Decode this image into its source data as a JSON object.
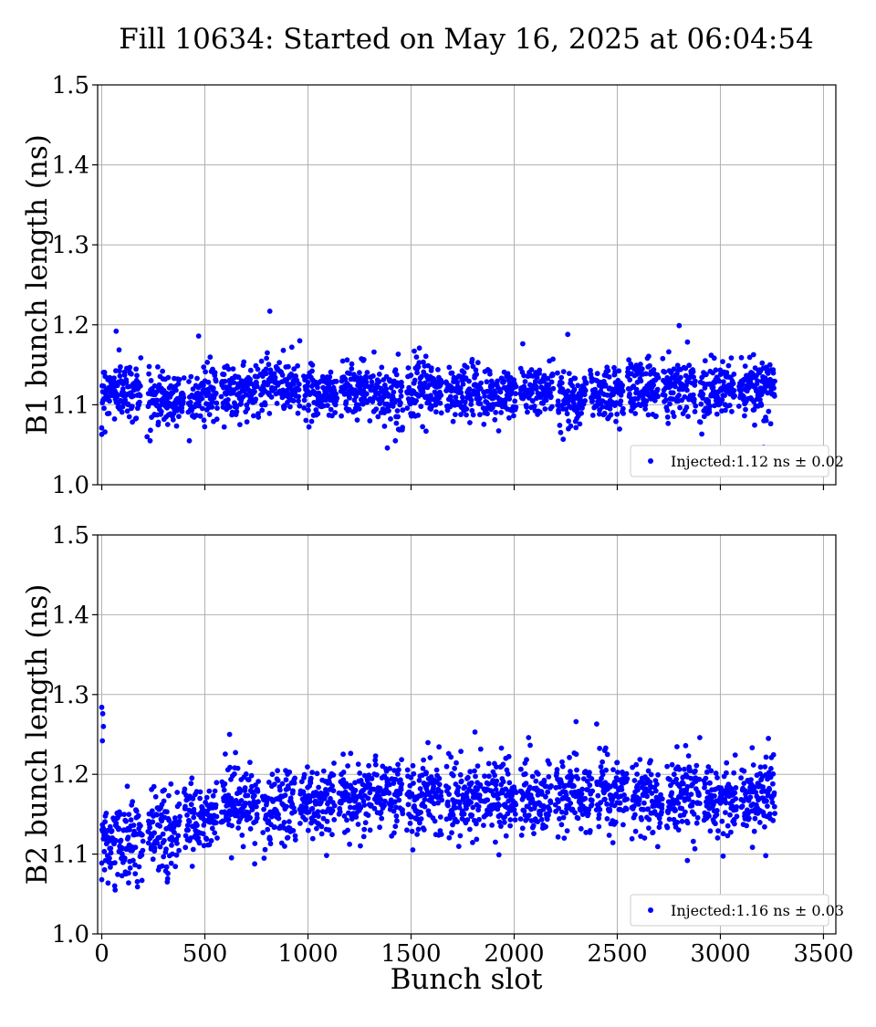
{
  "chart_data": {
    "type": "scatter",
    "title": "Fill 10634: Started on May 16, 2025 at 06:04:54",
    "xlabel": "Bunch slot",
    "xlim": [
      -20,
      3560
    ],
    "xticks": [
      0,
      500,
      1000,
      1500,
      2000,
      2500,
      3000,
      3500
    ],
    "xtick_labels": [
      "0",
      "500",
      "1000",
      "1500",
      "2000",
      "2500",
      "3000",
      "3500"
    ],
    "grid": true,
    "marker_color": "#0000ff",
    "panels": [
      {
        "ylabel": "B1 bunch length (ns)",
        "ylim": [
          1.0,
          1.5
        ],
        "yticks": [
          1.0,
          1.1,
          1.2,
          1.3,
          1.4,
          1.5
        ],
        "ytick_labels": [
          "1.0",
          "1.1",
          "1.2",
          "1.3",
          "1.4",
          "1.5"
        ],
        "show_xtick_labels": false,
        "legend": {
          "label": "Injected:1.12 ns ± 0.02",
          "placement": "lower-right"
        },
        "series": {
          "x_range": [
            0,
            3265
          ],
          "trains": [
            {
              "start": 0,
              "end": 190,
              "mean": 1.118
            },
            {
              "start": 225,
              "end": 400,
              "mean": 1.108
            },
            {
              "start": 420,
              "end": 560,
              "mean": 1.112
            },
            {
              "start": 580,
              "end": 760,
              "mean": 1.118
            },
            {
              "start": 770,
              "end": 960,
              "mean": 1.125
            },
            {
              "start": 980,
              "end": 1140,
              "mean": 1.115
            },
            {
              "start": 1160,
              "end": 1290,
              "mean": 1.122
            },
            {
              "start": 1300,
              "end": 1460,
              "mean": 1.112
            },
            {
              "start": 1480,
              "end": 1650,
              "mean": 1.118
            },
            {
              "start": 1670,
              "end": 1840,
              "mean": 1.115
            },
            {
              "start": 1850,
              "end": 2010,
              "mean": 1.112
            },
            {
              "start": 2030,
              "end": 2190,
              "mean": 1.118
            },
            {
              "start": 2210,
              "end": 2350,
              "mean": 1.11
            },
            {
              "start": 2370,
              "end": 2530,
              "mean": 1.115
            },
            {
              "start": 2550,
              "end": 2700,
              "mean": 1.122
            },
            {
              "start": 2720,
              "end": 2880,
              "mean": 1.124
            },
            {
              "start": 2900,
              "end": 3070,
              "mean": 1.118
            },
            {
              "start": 3090,
              "end": 3265,
              "mean": 1.12
            }
          ],
          "spread": 0.02,
          "outliers": [
            {
              "x": 815,
              "y": 1.217
            },
            {
              "x": 2800,
              "y": 1.199
            },
            {
              "x": 70,
              "y": 1.192
            },
            {
              "x": 2260,
              "y": 1.188
            },
            {
              "x": 470,
              "y": 1.186
            },
            {
              "x": 960,
              "y": 1.18
            },
            {
              "x": 1385,
              "y": 1.046
            },
            {
              "x": 3210,
              "y": 1.047
            },
            {
              "x": 0,
              "y": 1.063
            },
            {
              "x": 220,
              "y": 1.06
            }
          ]
        }
      },
      {
        "ylabel": "B2 bunch length (ns)",
        "ylim": [
          1.0,
          1.5
        ],
        "yticks": [
          1.0,
          1.1,
          1.2,
          1.3,
          1.4,
          1.5
        ],
        "ytick_labels": [
          "1.0",
          "1.1",
          "1.2",
          "1.3",
          "1.4",
          "1.5"
        ],
        "show_xtick_labels": true,
        "legend": {
          "label": "Injected:1.16 ns ± 0.03",
          "placement": "lower-right"
        },
        "series": {
          "x_range": [
            0,
            3265
          ],
          "trains": [
            {
              "start": 0,
              "end": 200,
              "mean": 1.115
            },
            {
              "start": 225,
              "end": 380,
              "mean": 1.128
            },
            {
              "start": 400,
              "end": 560,
              "mean": 1.148
            },
            {
              "start": 580,
              "end": 760,
              "mean": 1.16
            },
            {
              "start": 780,
              "end": 940,
              "mean": 1.158
            },
            {
              "start": 960,
              "end": 1130,
              "mean": 1.165
            },
            {
              "start": 1150,
              "end": 1310,
              "mean": 1.17
            },
            {
              "start": 1320,
              "end": 1460,
              "mean": 1.175
            },
            {
              "start": 1480,
              "end": 1650,
              "mean": 1.172
            },
            {
              "start": 1670,
              "end": 1840,
              "mean": 1.168
            },
            {
              "start": 1850,
              "end": 2010,
              "mean": 1.17
            },
            {
              "start": 2030,
              "end": 2180,
              "mean": 1.17
            },
            {
              "start": 2200,
              "end": 2380,
              "mean": 1.172
            },
            {
              "start": 2400,
              "end": 2550,
              "mean": 1.175
            },
            {
              "start": 2570,
              "end": 2720,
              "mean": 1.172
            },
            {
              "start": 2740,
              "end": 2900,
              "mean": 1.17
            },
            {
              "start": 2920,
              "end": 3080,
              "mean": 1.172
            },
            {
              "start": 3100,
              "end": 3265,
              "mean": 1.175
            }
          ],
          "spread": 0.028,
          "outliers": [
            {
              "x": 0,
              "y": 1.284
            },
            {
              "x": 5,
              "y": 1.276
            },
            {
              "x": 8,
              "y": 1.26
            },
            {
              "x": 3,
              "y": 1.242
            },
            {
              "x": 2300,
              "y": 1.266
            },
            {
              "x": 2400,
              "y": 1.263
            },
            {
              "x": 1810,
              "y": 1.253
            },
            {
              "x": 620,
              "y": 1.25
            },
            {
              "x": 2900,
              "y": 1.246
            },
            {
              "x": 2070,
              "y": 1.246
            },
            {
              "x": 0,
              "y": 1.068
            },
            {
              "x": 130,
              "y": 1.064
            },
            {
              "x": 2840,
              "y": 1.092
            },
            {
              "x": 3220,
              "y": 1.098
            }
          ]
        }
      }
    ]
  }
}
